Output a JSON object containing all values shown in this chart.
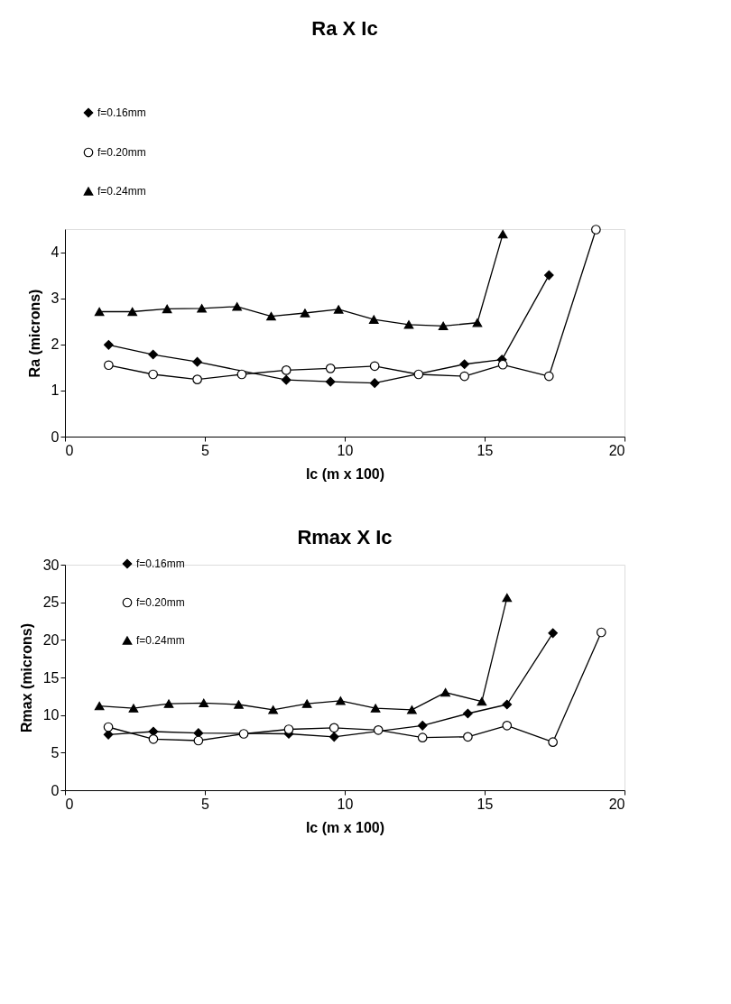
{
  "chart_data": [
    {
      "type": "line",
      "title": "Ra X Ic",
      "xlabel": "Ic (m x 100)",
      "ylabel": "Ra (microns)",
      "xlim": [
        0,
        20
      ],
      "xticks": [
        0,
        5,
        10,
        15,
        20
      ],
      "ylim": [
        0,
        4.5
      ],
      "yticks": [
        0,
        1,
        2,
        3,
        4
      ],
      "grid": false,
      "legend": "top",
      "line_style": "solid",
      "series": [
        {
          "name": "f=0.16mm",
          "color": "#000000",
          "marker": "diamond",
          "x": [
            1.56,
            3.15,
            4.73,
            6.32,
            7.91,
            9.49,
            11.07,
            12.64,
            14.28,
            15.62,
            17.3
          ],
          "values": [
            1.99,
            1.78,
            1.62,
            null,
            1.23,
            1.19,
            1.16,
            null,
            1.57,
            1.67,
            3.5
          ]
        },
        {
          "name": "f=0.20mm",
          "color": "#000000",
          "marker": "circle",
          "x": [
            1.56,
            3.15,
            4.73,
            6.32,
            7.91,
            9.49,
            11.07,
            12.64,
            14.28,
            15.65,
            17.3,
            18.98
          ],
          "values": [
            1.55,
            1.35,
            1.24,
            1.35,
            1.44,
            1.48,
            1.53,
            1.35,
            1.31,
            1.56,
            1.31,
            4.49
          ]
        },
        {
          "name": "f=0.24mm",
          "color": "#000000",
          "marker": "triangle",
          "x": [
            1.23,
            2.41,
            3.65,
            4.89,
            6.15,
            7.37,
            8.58,
            9.78,
            11.04,
            12.29,
            13.52,
            14.74,
            15.65
          ],
          "values": [
            2.71,
            2.71,
            2.77,
            2.78,
            2.82,
            2.61,
            2.68,
            2.76,
            2.54,
            2.43,
            2.4,
            2.47,
            4.39
          ]
        }
      ]
    },
    {
      "type": "line",
      "title": "Rmax X Ic",
      "xlabel": "Ic (m x 100)",
      "ylabel": "Rmax (microns)",
      "xlim": [
        0,
        20
      ],
      "xticks": [
        0,
        5,
        10,
        15,
        20
      ],
      "ylim": [
        0,
        30
      ],
      "yticks": [
        0,
        5,
        10,
        15,
        20,
        25,
        30
      ],
      "grid": false,
      "legend": "top left",
      "line_style": "solid",
      "series": [
        {
          "name": "f=0.16mm",
          "color": "#000000",
          "marker": "diamond",
          "x": [
            1.55,
            3.16,
            4.77,
            6.39,
            8.0,
            9.62,
            11.2,
            12.78,
            14.4,
            15.8,
            17.44
          ],
          "values": [
            7.4,
            7.8,
            7.6,
            null,
            7.5,
            7.1,
            null,
            8.6,
            10.2,
            11.4,
            20.9
          ]
        },
        {
          "name": "f=0.20mm",
          "color": "#000000",
          "marker": "circle",
          "x": [
            1.55,
            3.16,
            4.77,
            6.39,
            8.0,
            9.62,
            11.2,
            12.78,
            14.4,
            15.8,
            17.44,
            19.17
          ],
          "values": [
            8.4,
            6.8,
            6.6,
            7.5,
            8.1,
            8.3,
            8.0,
            7.0,
            7.1,
            8.6,
            6.4,
            21.0
          ]
        },
        {
          "name": "f=0.24mm",
          "color": "#000000",
          "marker": "triangle",
          "x": [
            1.23,
            2.45,
            3.71,
            4.96,
            6.21,
            7.44,
            8.65,
            9.85,
            11.1,
            12.4,
            13.6,
            14.9,
            15.8
          ],
          "values": [
            11.2,
            10.9,
            11.5,
            11.6,
            11.4,
            10.7,
            11.5,
            11.9,
            10.9,
            10.7,
            13.0,
            11.8,
            25.6
          ]
        }
      ]
    }
  ]
}
